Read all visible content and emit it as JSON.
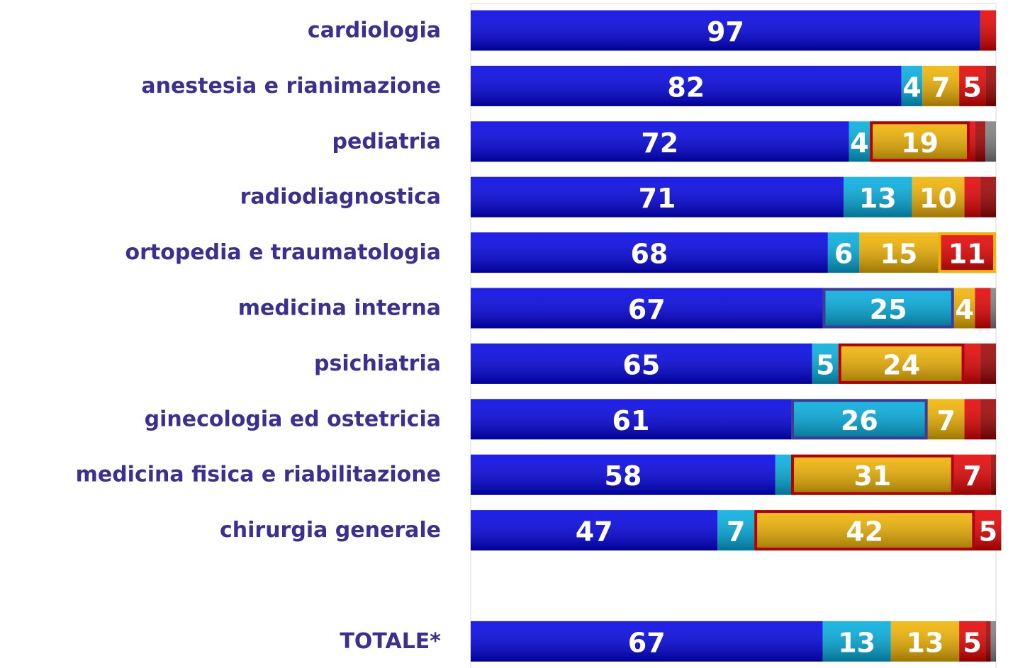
{
  "chart_data": {
    "type": "stacked-bar-horizontal",
    "categories": [
      "cardiologia",
      "anestesia e rianimazione",
      "pediatria",
      "radiodiagnostica",
      "ortopedia e traumatologia",
      "medicina interna",
      "psichiatria",
      "ginecologia ed ostetricia",
      "medicina fisica e riabilitazione",
      "chirurgia generale",
      null,
      "TOTALE*"
    ],
    "xlim": [
      0,
      100
    ],
    "series": [
      {
        "color": "#0000e6",
        "values": [
          97,
          82,
          72,
          71,
          68,
          67,
          65,
          61,
          58,
          47,
          null,
          67
        ]
      },
      {
        "color": "#00aee0",
        "values": [
          0,
          4,
          4,
          13,
          6,
          25,
          5,
          26,
          3,
          7,
          null,
          13
        ],
        "outline_color": "#3f3a9a",
        "outlined": [
          false,
          false,
          false,
          false,
          false,
          true,
          false,
          true,
          false,
          false,
          false,
          false
        ]
      },
      {
        "color": "#f2b400",
        "values": [
          0,
          7,
          19,
          10,
          15,
          4,
          24,
          7,
          31,
          42,
          null,
          13
        ],
        "outline_color": "#b00000",
        "outlined": [
          false,
          false,
          true,
          false,
          false,
          false,
          true,
          false,
          true,
          true,
          false,
          false
        ]
      },
      {
        "color": "#e60000",
        "values": [
          3,
          5,
          1,
          3,
          11,
          3,
          3,
          3,
          7,
          5,
          null,
          5
        ],
        "outline_color": "#f2b400",
        "outlined": [
          false,
          false,
          false,
          false,
          true,
          false,
          false,
          false,
          false,
          false,
          false,
          false
        ]
      },
      {
        "color": "#a00000",
        "values": [
          0,
          2,
          2,
          3,
          0,
          0,
          3,
          3,
          1,
          0,
          null,
          1
        ]
      },
      {
        "color": "#808080",
        "values": [
          0,
          0,
          2,
          0,
          0,
          1,
          0,
          0,
          0,
          0,
          null,
          1
        ]
      }
    ]
  }
}
